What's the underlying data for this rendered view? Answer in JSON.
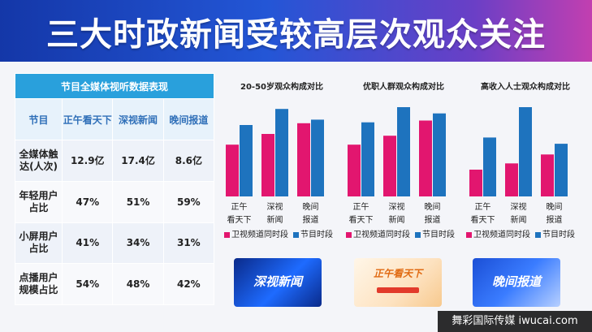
{
  "header": {
    "title": "三大时政新闻受较高层次观众关注"
  },
  "table": {
    "caption": "节目全媒体视听数据表现",
    "corner": "节目",
    "columns": [
      "正午看天下",
      "深视新闻",
      "晚间报道"
    ],
    "rows": [
      {
        "label": "全媒体触达(人次)",
        "values": [
          "12.9亿",
          "17.4亿",
          "8.6亿"
        ]
      },
      {
        "label": "年轻用户占比",
        "values": [
          "47%",
          "51%",
          "59%"
        ]
      },
      {
        "label": "小屏用户占比",
        "values": [
          "41%",
          "34%",
          "31%"
        ]
      },
      {
        "label": "点播用户规模占比",
        "values": [
          "54%",
          "48%",
          "42%"
        ]
      }
    ]
  },
  "colors": {
    "pink": "#e2166f",
    "blue": "#1e73be",
    "header": "#2356d6",
    "table_caption": "#29a0dc"
  },
  "chart_data": [
    {
      "type": "bar",
      "title": "20-50岁观众构成对比",
      "categories": [
        "正午看天下",
        "深视新闻",
        "晚间报道"
      ],
      "series": [
        {
          "name": "卫视频道同时段",
          "values": [
            58,
            70,
            82
          ]
        },
        {
          "name": "节目时段",
          "values": [
            80,
            98,
            86
          ]
        }
      ],
      "ylim": [
        0,
        100
      ],
      "grid": false,
      "legend": "bottom"
    },
    {
      "type": "bar",
      "title": "优职人群观众构成对比",
      "categories": [
        "正午看天下",
        "深视新闻",
        "晚间报道"
      ],
      "series": [
        {
          "name": "卫视频道同时段",
          "values": [
            58,
            68,
            85
          ]
        },
        {
          "name": "节目时段",
          "values": [
            83,
            100,
            93
          ]
        }
      ],
      "ylim": [
        0,
        100
      ],
      "grid": false,
      "legend": "bottom"
    },
    {
      "type": "bar",
      "title": "高收入人士观众构成对比",
      "categories": [
        "正午看天下",
        "深视新闻",
        "晚间报道"
      ],
      "series": [
        {
          "name": "卫视频道同时段",
          "values": [
            30,
            37,
            47
          ]
        },
        {
          "name": "节目时段",
          "values": [
            66,
            100,
            59
          ]
        }
      ],
      "ylim": [
        0,
        100
      ],
      "grid": false,
      "legend": "bottom"
    }
  ],
  "thumbnails": [
    "深视新闻",
    "正午看天下",
    "晚间报道"
  ],
  "watermark": "舞彩国际传媒 iwucai.com"
}
